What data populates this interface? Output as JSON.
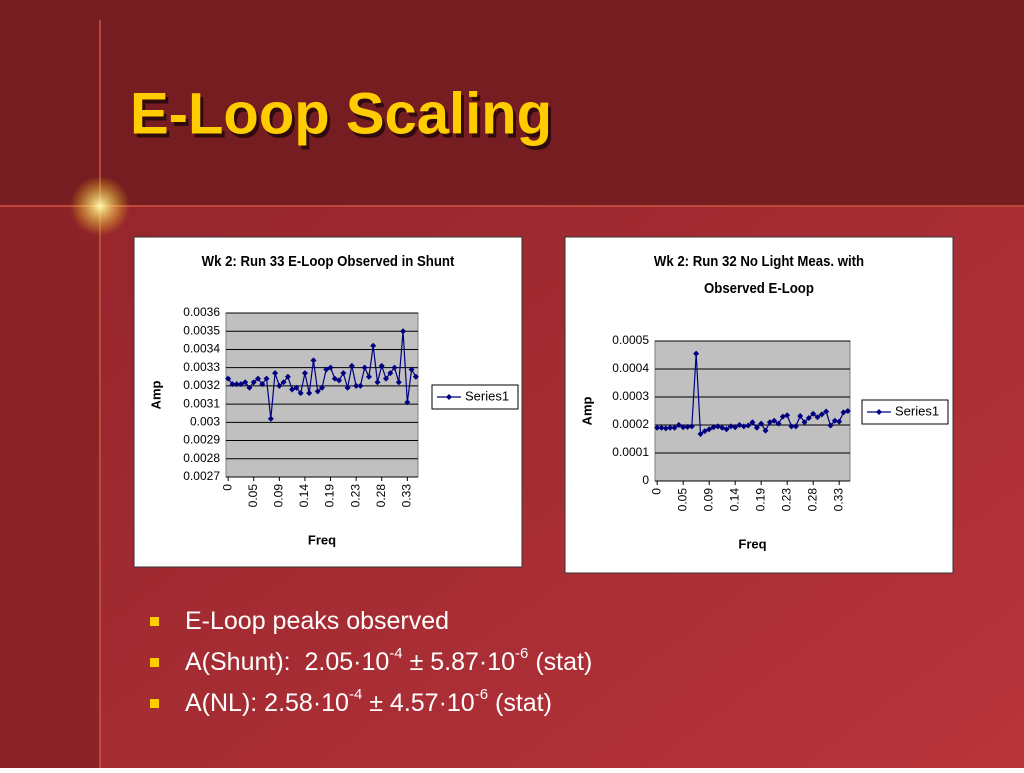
{
  "slide": {
    "title": "E-Loop Scaling",
    "bullets": [
      [
        "E-Loop peaks observed"
      ],
      [
        "A(Shunt):  2.05·10",
        "-4",
        " ± 5.87·10",
        "-6",
        " (stat)"
      ],
      [
        "A(NL): 2.58·10",
        "-4",
        " ± 4.57·10",
        "-6",
        " (stat)"
      ]
    ]
  },
  "chart_data": [
    {
      "type": "line",
      "title": [
        "Wk 2: Run 33 E-Loop Observed in Shunt"
      ],
      "x_label": "Freq",
      "y_label": "Amp",
      "categories": [
        "0",
        null,
        null,
        null,
        null,
        null,
        "0.05",
        null,
        null,
        null,
        null,
        null,
        "0.09",
        null,
        null,
        null,
        null,
        null,
        "0.14",
        null,
        null,
        null,
        null,
        null,
        "0.19",
        null,
        null,
        null,
        null,
        null,
        "0.23",
        null,
        null,
        null,
        null,
        null,
        "0.28",
        null,
        null,
        null,
        null,
        null,
        "0.33",
        null,
        null
      ],
      "series": [
        {
          "name": "Series1",
          "color": "#000080",
          "values": [
            0.00324,
            0.00321,
            0.00321,
            0.00321,
            0.00322,
            0.00319,
            0.00322,
            0.00324,
            0.00321,
            0.00324,
            0.00302,
            0.00327,
            0.0032,
            0.00322,
            0.00325,
            0.00318,
            0.00319,
            0.00316,
            0.00327,
            0.00316,
            0.00334,
            0.00317,
            0.00319,
            0.00329,
            0.0033,
            0.00324,
            0.00323,
            0.00327,
            0.00319,
            0.00331,
            0.0032,
            0.0032,
            0.0033,
            0.00325,
            0.00342,
            0.00322,
            0.00331,
            0.00324,
            0.00327,
            0.0033,
            0.00322,
            0.0035,
            0.00311,
            0.00329,
            0.00325
          ]
        }
      ],
      "ylim": [
        0.0027,
        0.0036
      ],
      "yticks": [
        0.0027,
        0.0028,
        0.0029,
        0.003,
        0.0031,
        0.0032,
        0.0033,
        0.0034,
        0.0035,
        0.0036
      ],
      "grid": true,
      "legend": "right"
    },
    {
      "type": "line",
      "title": [
        "Wk 2: Run 32 No Light Meas. with",
        "Observed E-Loop"
      ],
      "x_label": "Freq",
      "y_label": "Amp",
      "categories": [
        "0",
        null,
        null,
        null,
        null,
        null,
        "0.05",
        null,
        null,
        null,
        null,
        null,
        "0.09",
        null,
        null,
        null,
        null,
        null,
        "0.14",
        null,
        null,
        null,
        null,
        null,
        "0.19",
        null,
        null,
        null,
        null,
        null,
        "0.23",
        null,
        null,
        null,
        null,
        null,
        "0.28",
        null,
        null,
        null,
        null,
        null,
        "0.33",
        null,
        null
      ],
      "series": [
        {
          "name": "Series1",
          "color": "#000080",
          "values": [
            0.00019,
            0.00019,
            0.000188,
            0.00019,
            0.00019,
            0.0002,
            0.000192,
            0.000193,
            0.000195,
            0.000455,
            0.000168,
            0.000178,
            0.000185,
            0.000192,
            0.000195,
            0.00019,
            0.000185,
            0.000195,
            0.000192,
            0.0002,
            0.000195,
            0.000198,
            0.00021,
            0.00019,
            0.000205,
            0.00018,
            0.00021,
            0.000215,
            0.000205,
            0.00023,
            0.000235,
            0.000195,
            0.000195,
            0.000232,
            0.00021,
            0.000225,
            0.00024,
            0.000228,
            0.000238,
            0.000248,
            0.000198,
            0.000215,
            0.000212,
            0.000245,
            0.00025
          ]
        }
      ],
      "ylim": [
        0,
        0.0005
      ],
      "yticks": [
        0,
        0.0001,
        0.0002,
        0.0003,
        0.0004,
        0.0005
      ],
      "grid": true,
      "legend": "right"
    }
  ]
}
